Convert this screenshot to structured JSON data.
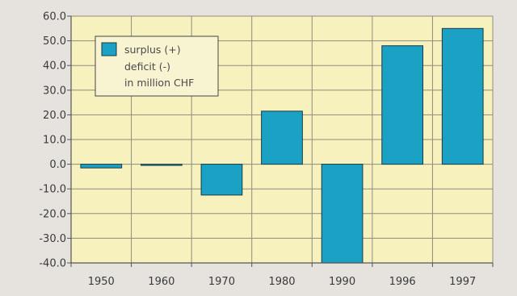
{
  "colors": {
    "background": "#e6e3df",
    "plot_area": "#f7f2bd",
    "bar": "#1aa1c4",
    "bar_stroke": "#1a3a44",
    "grid": "#8d8c80",
    "legend_bg": "#f8f4d2"
  },
  "chart_data": {
    "type": "bar",
    "title": "",
    "xlabel": "",
    "ylabel": "",
    "categories": [
      "1950",
      "1960",
      "1970",
      "1980",
      "1990",
      "1996",
      "1997"
    ],
    "series": [
      {
        "name": "surplus (+)\ndeficit (-)\nin million CHF",
        "values": [
          -1.5,
          -0.3,
          -12.5,
          21.5,
          -40.0,
          48.0,
          55.0
        ]
      }
    ],
    "ylim": [
      -40,
      60
    ],
    "yticks": [
      "60.0",
      "50.0",
      "40.0",
      "30.0",
      "20.0",
      "10.0",
      "0.0",
      "-10.0",
      "-20.0",
      "-30.0",
      "-40.0"
    ],
    "grid": true,
    "legend": {
      "placement": "top-left",
      "lines": [
        "surplus (+)",
        "deficit (-)",
        "in million CHF"
      ]
    }
  }
}
